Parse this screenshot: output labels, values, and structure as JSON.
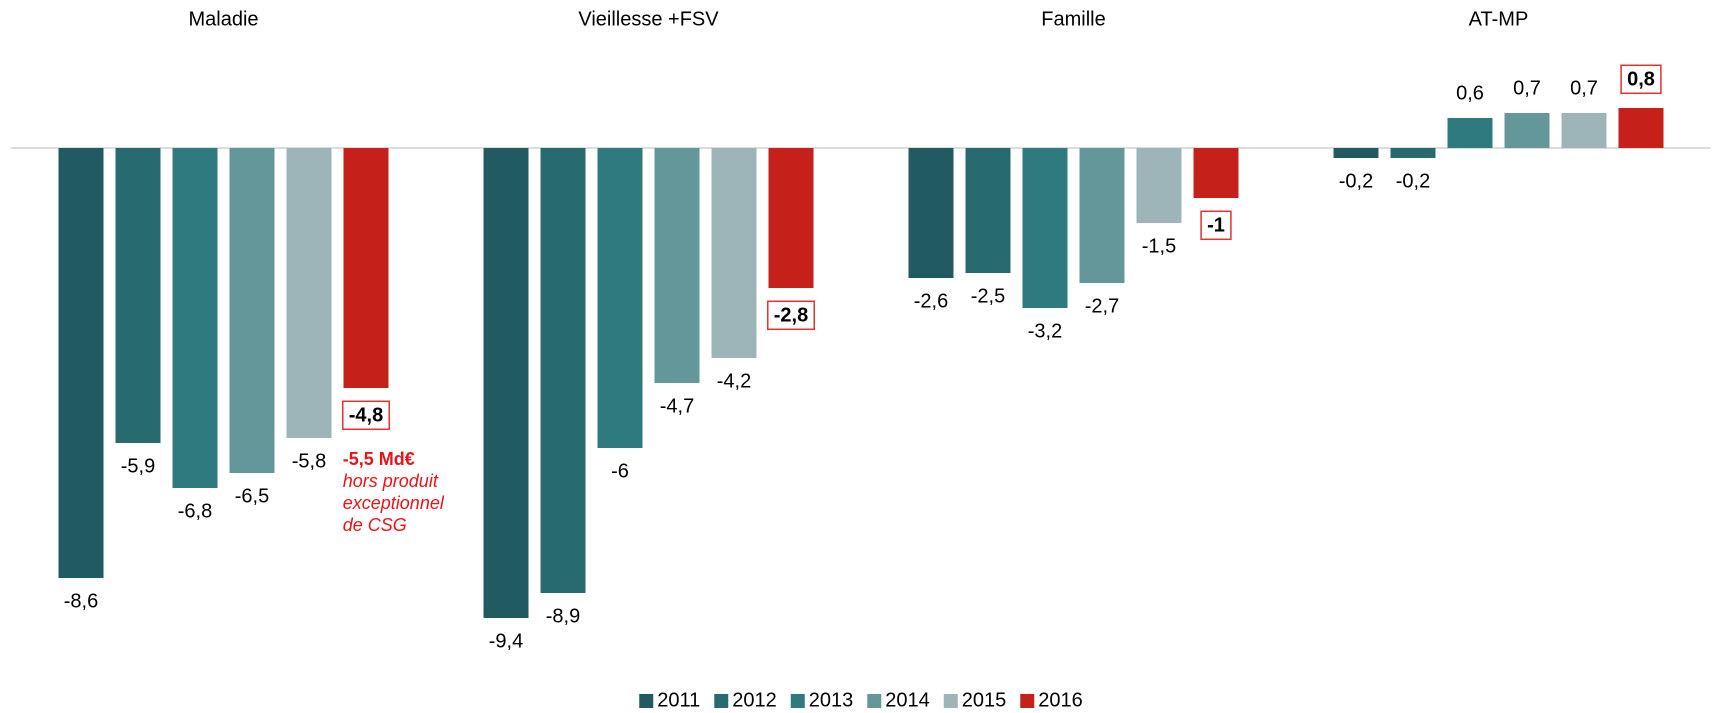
{
  "chart_data": {
    "type": "bar",
    "categories": [
      "Maladie",
      "Vieillesse +FSV",
      "Famille",
      "AT-MP"
    ],
    "series": [
      {
        "name": "2011",
        "color": "#215a60",
        "values": [
          -8.6,
          -9.4,
          -2.6,
          -0.2
        ],
        "value_labels": [
          "-8,6",
          "-9,4",
          "-2,6",
          "-0,2"
        ]
      },
      {
        "name": "2012",
        "color": "#276b70",
        "values": [
          -5.9,
          -8.9,
          -2.5,
          -0.2
        ],
        "value_labels": [
          "-5,9",
          "-8,9",
          "-2,5",
          "-0,2"
        ]
      },
      {
        "name": "2013",
        "color": "#2e7a7e",
        "values": [
          -6.8,
          -6,
          -3.2,
          0.6
        ],
        "value_labels": [
          "-6,8",
          "-6",
          "-3,2",
          "0,6"
        ]
      },
      {
        "name": "2014",
        "color": "#64979a",
        "values": [
          -6.5,
          -4.7,
          -2.7,
          0.7
        ],
        "value_labels": [
          "-6,5",
          "-4,7",
          "-2,7",
          "0,7"
        ]
      },
      {
        "name": "2015",
        "color": "#9db5b8",
        "values": [
          -5.8,
          -4.2,
          -1.5,
          0.7
        ],
        "value_labels": [
          "-5,8",
          "-4,2",
          "-1,5",
          "0,7"
        ]
      },
      {
        "name": "2016",
        "color": "#c5201a",
        "values": [
          -4.8,
          -2.8,
          -1,
          0.8
        ],
        "value_labels": [
          "-4,8",
          "-2,8",
          "-1",
          "0,8"
        ]
      }
    ],
    "annotation": {
      "value_label": "-5,5 Md€",
      "lines": [
        "hors produit",
        "exceptionnel",
        "de CSG"
      ]
    },
    "ylim": [
      -10.5,
      2.5
    ]
  }
}
